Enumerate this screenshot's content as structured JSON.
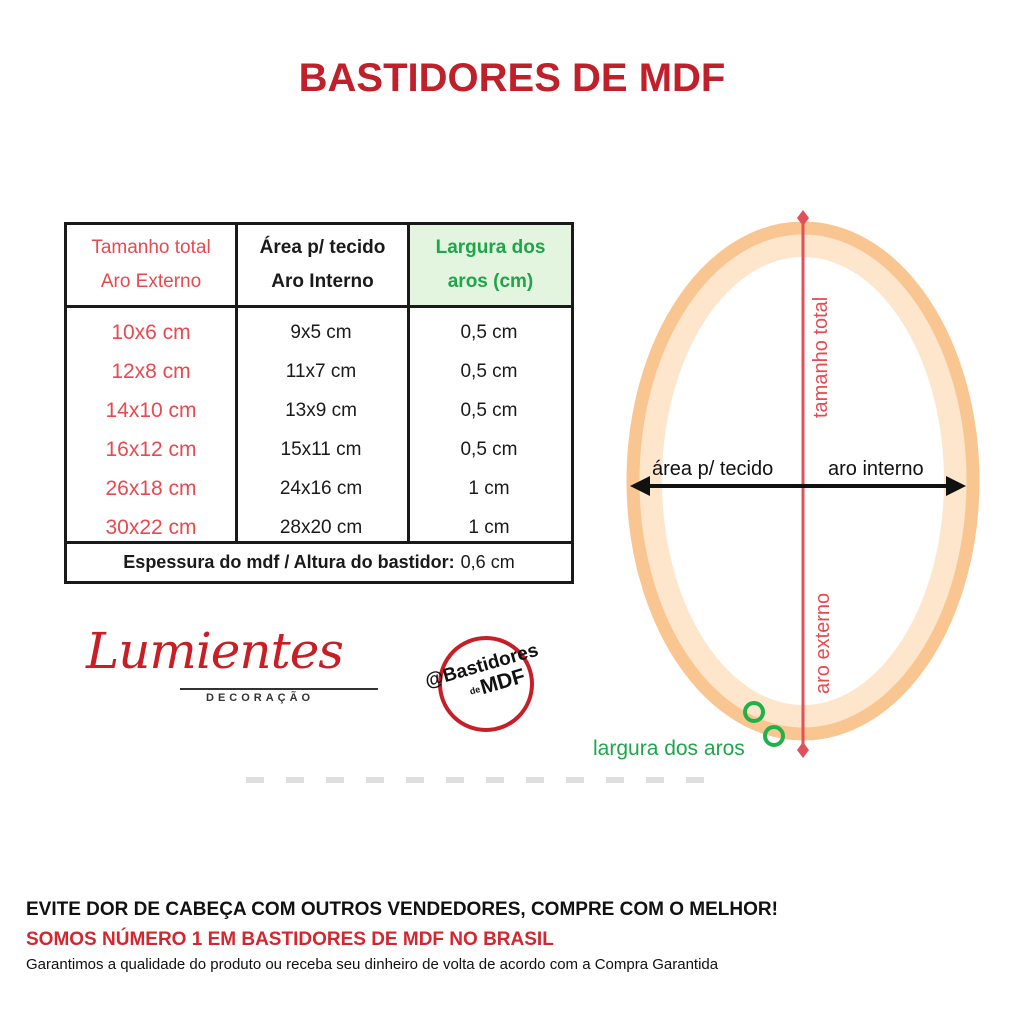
{
  "title": "BASTIDORES DE MDF",
  "table": {
    "headers": [
      {
        "line1": "Tamanho total",
        "line2": "Aro Externo"
      },
      {
        "line1": "Área p/ tecido",
        "line2": "Aro Interno"
      },
      {
        "line1": "Largura dos",
        "line2": "aros (cm)"
      }
    ],
    "rows": [
      {
        "size": "10x6 cm",
        "area": "9x5 cm",
        "width": "0,5 cm"
      },
      {
        "size": "12x8 cm",
        "area": "11x7 cm",
        "width": "0,5 cm"
      },
      {
        "size": "14x10 cm",
        "area": "13x9 cm",
        "width": "0,5 cm"
      },
      {
        "size": "16x12 cm",
        "area": "15x11 cm",
        "width": "0,5 cm"
      },
      {
        "size": "26x18 cm",
        "area": "24x16 cm",
        "width": "1 cm"
      },
      {
        "size": "30x22 cm",
        "area": "28x20 cm",
        "width": "1 cm"
      }
    ],
    "footer_label": "Espessura do mdf / Altura do bastidor:",
    "footer_value": "0,6 cm"
  },
  "logos": {
    "lumientes_name": "Lumientes",
    "lumientes_sub": "DECORAÇÃO",
    "bastidores_line1": "@Bastidores",
    "bastidores_de": "de",
    "bastidores_line2": "MDF"
  },
  "diagram": {
    "label_area": "área p/ tecido",
    "label_inner": "aro interno",
    "label_total": "tamanho total",
    "label_outer": "aro externo",
    "label_width": "largura dos aros",
    "colors": {
      "ring": "#f9c692",
      "ring_inner_glow": "#fde6cc",
      "axis": "#e0505a",
      "arrow": "#111111",
      "marker": "#22b04b"
    }
  },
  "footer": {
    "line1": "EVITE DOR DE CABEÇA COM OUTROS VENDEDORES, COMPRE COM O MELHOR!",
    "line2": "SOMOS NÚMERO 1 EM BASTIDORES DE MDF NO BRASIL",
    "line3": "Garantimos a qualidade do produto ou receba seu dinheiro de volta de acordo com a Compra Garantida"
  }
}
